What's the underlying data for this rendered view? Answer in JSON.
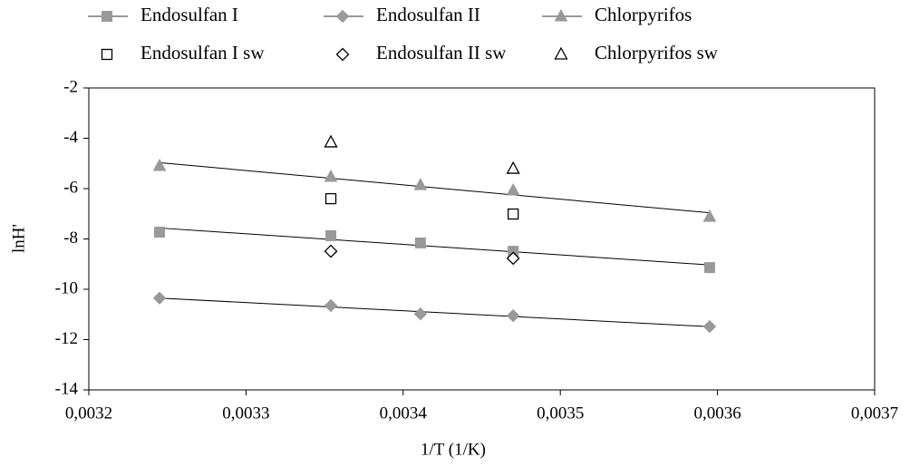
{
  "chart_data": {
    "type": "scatter",
    "x_label": "1/T (1/K)",
    "y_label": "lnH'",
    "xlim": [
      0.0032,
      0.0037
    ],
    "xticks": [
      {
        "value": 0.0032,
        "label": "0,0032"
      },
      {
        "value": 0.0033,
        "label": "0,0033"
      },
      {
        "value": 0.0034,
        "label": "0,0034"
      },
      {
        "value": 0.0035,
        "label": "0,0035"
      },
      {
        "value": 0.0036,
        "label": "0,0036"
      },
      {
        "value": 0.0037,
        "label": "0,0037"
      }
    ],
    "ylim": [
      -14,
      -2
    ],
    "yticks": [
      -14,
      -12,
      -10,
      -8,
      -6,
      -4,
      -2
    ],
    "series": [
      {
        "name": "Endosulfan I",
        "color": "#999999",
        "marker": "square",
        "filled": true,
        "trendline": true,
        "x": [
          0.003245,
          0.003354,
          0.003411,
          0.00347,
          0.003595
        ],
        "values": [
          -7.73,
          -7.87,
          -8.16,
          -8.49,
          -9.14
        ]
      },
      {
        "name": "Endosulfan II",
        "color": "#999999",
        "marker": "diamond",
        "filled": true,
        "trendline": true,
        "x": [
          0.003245,
          0.003354,
          0.003411,
          0.00347,
          0.003595
        ],
        "values": [
          -10.35,
          -10.65,
          -10.98,
          -11.05,
          -11.48
        ]
      },
      {
        "name": "Chlorpyrifos",
        "color": "#999999",
        "marker": "triangle",
        "filled": true,
        "trendline": true,
        "x": [
          0.003245,
          0.003354,
          0.003411,
          0.00347,
          0.003595
        ],
        "values": [
          -5.1,
          -5.53,
          -5.86,
          -6.07,
          -7.12
        ]
      },
      {
        "name": "Endosulfan I sw",
        "color": "#000000",
        "marker": "square",
        "filled": false,
        "trendline": false,
        "x": [
          0.003354,
          0.00347
        ],
        "values": [
          -6.4,
          -7.01
        ]
      },
      {
        "name": "Endosulfan II sw",
        "color": "#000000",
        "marker": "diamond",
        "filled": false,
        "trendline": false,
        "x": [
          0.003354,
          0.00347
        ],
        "values": [
          -8.49,
          -8.77
        ]
      },
      {
        "name": "Chlorpyrifos sw",
        "color": "#000000",
        "marker": "triangle",
        "filled": false,
        "trendline": false,
        "x": [
          0.003354,
          0.00347
        ],
        "values": [
          -4.16,
          -5.21
        ]
      }
    ]
  }
}
